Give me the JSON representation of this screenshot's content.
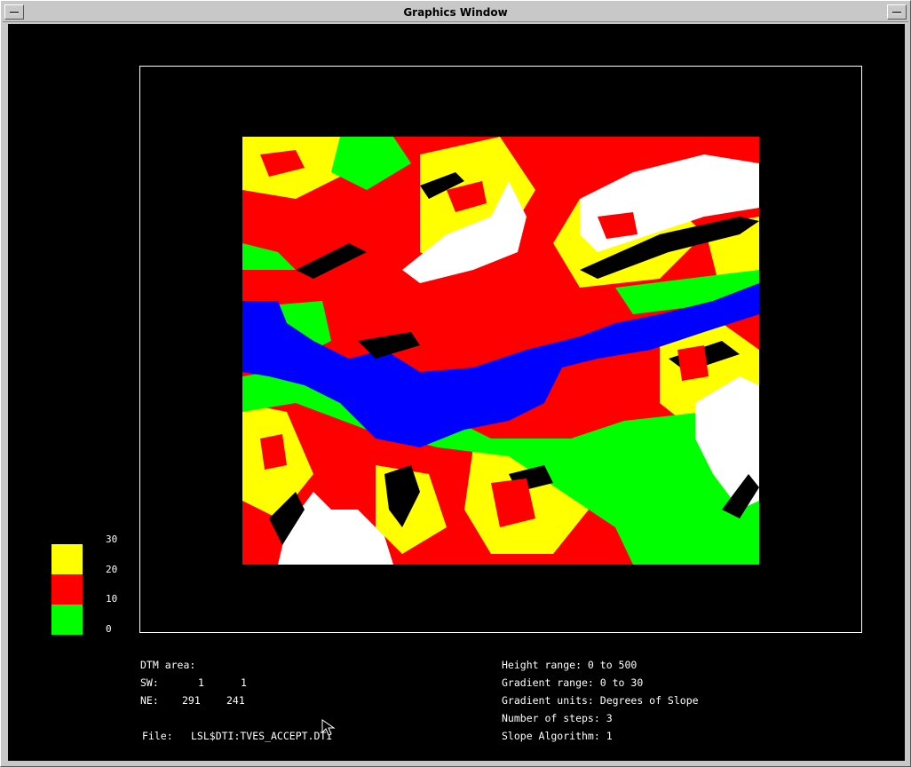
{
  "window": {
    "title": "Graphics Window"
  },
  "legend": {
    "items": [
      {
        "color": "#ffff00",
        "label_top": "30"
      },
      {
        "color": "#ff0000",
        "label_top": "20"
      },
      {
        "color": "#00ff00",
        "label_top": "10"
      }
    ],
    "bottom_label": "0"
  },
  "info_left": {
    "dtm_area": "DTM area:",
    "sw_label": "SW:",
    "sw_x": "1",
    "sw_y": "1",
    "ne_label": "NE:",
    "ne_x": "291",
    "ne_y": "241",
    "file_label": "File:",
    "file_value": "LSL$DTI:TVES_ACCEPT.DTI"
  },
  "info_right": {
    "height_range": "Height range: 0 to 500",
    "gradient_range": "Gradient range: 0 to 30",
    "gradient_units": "Gradient units: Degrees of Slope",
    "number_of_steps": "Number of steps: 3",
    "slope_algorithm": "Slope Algorithm: 1"
  },
  "colors": {
    "water": "#0000ff",
    "flat": "#00ff00",
    "moderate": "#ff0000",
    "steep": "#ffff00",
    "cliff": "#000000",
    "snow": "#ffffff"
  }
}
